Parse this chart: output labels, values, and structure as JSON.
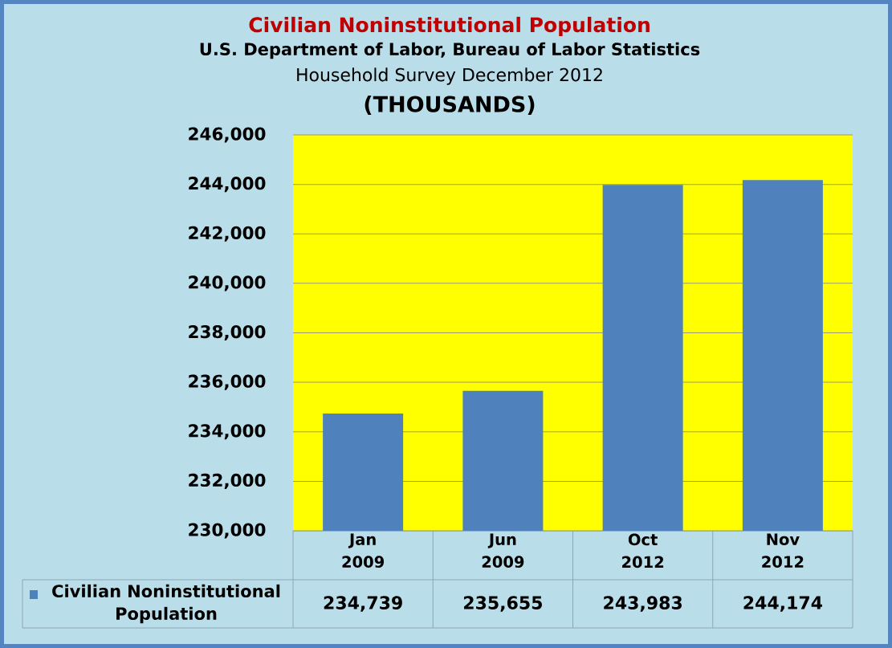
{
  "chart_data": {
    "type": "bar",
    "title": "Civilian Noninstitutional Population",
    "subtitle": "U.S. Department of Labor, Bureau of Labor Statistics",
    "annotations": [
      "Household Survey December 2012"
    ],
    "ylabel": "(THOUSANDS)",
    "categories": [
      "Jan 2009",
      "Jun 2009",
      "Oct 2012",
      "Nov 2012"
    ],
    "series": [
      {
        "name": "Civilian Noninstitutional Population",
        "color": "#4f81bd",
        "values": [
          234739,
          235655,
          243983,
          244174
        ],
        "value_labels": [
          "234,739",
          "235,655",
          "243,983",
          "244,174"
        ]
      }
    ],
    "ylim": [
      230000,
      246000
    ],
    "yticks": [
      {
        "value": 230000,
        "label": "230,000"
      },
      {
        "value": 232000,
        "label": "232,000"
      },
      {
        "value": 234000,
        "label": "234,000"
      },
      {
        "value": 236000,
        "label": "236,000"
      },
      {
        "value": 238000,
        "label": "238,000"
      },
      {
        "value": 240000,
        "label": "240,000"
      },
      {
        "value": 242000,
        "label": "242,000"
      },
      {
        "value": 244000,
        "label": "244,000"
      },
      {
        "value": 246000,
        "label": "246,000"
      }
    ],
    "grid": "y",
    "legend": "bottom"
  }
}
